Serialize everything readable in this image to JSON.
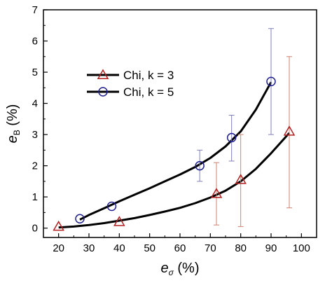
{
  "chart_data": {
    "type": "scatter",
    "xlim": [
      15,
      105
    ],
    "ylim": [
      -0.3,
      7
    ],
    "x_ticks": [
      20,
      30,
      40,
      50,
      60,
      70,
      80,
      90,
      100
    ],
    "y_ticks": [
      0,
      1,
      2,
      3,
      4,
      5,
      6,
      7
    ],
    "xlabel": {
      "main": "e",
      "sub": "σ",
      "rest": " (%)"
    },
    "ylabel": {
      "main": "e",
      "sub": "B",
      "rest": " (%)"
    },
    "legend_position": "upper-left",
    "grid": false,
    "series": [
      {
        "name": "Chi, k = 3",
        "marker": "triangle",
        "marker_color": "#b22222",
        "errorbar_color": "#d08070",
        "line_color": "#000000",
        "points": [
          {
            "x": 20,
            "y": 0.05,
            "err_low": 0.0,
            "err_high": 0.0
          },
          {
            "x": 40,
            "y": 0.2,
            "err_low": 0.0,
            "err_high": 0.0
          },
          {
            "x": 72,
            "y": 1.1,
            "err_low": 1.0,
            "err_high": 1.0
          },
          {
            "x": 80,
            "y": 1.55,
            "err_low": 1.5,
            "err_high": 1.45
          },
          {
            "x": 96,
            "y": 3.1,
            "err_low": 2.45,
            "err_high": 2.4
          }
        ],
        "fit": [
          [
            20,
            0.02
          ],
          [
            25,
            0.05
          ],
          [
            30,
            0.1
          ],
          [
            35,
            0.16
          ],
          [
            40,
            0.24
          ],
          [
            45,
            0.32
          ],
          [
            50,
            0.42
          ],
          [
            55,
            0.53
          ],
          [
            60,
            0.65
          ],
          [
            65,
            0.8
          ],
          [
            70,
            0.98
          ],
          [
            75,
            1.2
          ],
          [
            80,
            1.5
          ],
          [
            85,
            1.9
          ],
          [
            90,
            2.4
          ],
          [
            96,
            3.05
          ]
        ]
      },
      {
        "name": "Chi, k = 5",
        "marker": "circle",
        "marker_color": "#1f1f8f",
        "errorbar_color": "#8080b8",
        "line_color": "#000000",
        "points": [
          {
            "x": 27,
            "y": 0.3,
            "err_low": 0.0,
            "err_high": 0.0
          },
          {
            "x": 37.5,
            "y": 0.7,
            "err_low": 0.0,
            "err_high": 0.0
          },
          {
            "x": 66.5,
            "y": 2.0,
            "err_low": 0.5,
            "err_high": 0.5
          },
          {
            "x": 77,
            "y": 2.9,
            "err_low": 0.75,
            "err_high": 0.72
          },
          {
            "x": 90,
            "y": 4.7,
            "err_low": 1.7,
            "err_high": 1.7
          }
        ],
        "fit": [
          [
            27,
            0.27
          ],
          [
            30,
            0.42
          ],
          [
            35,
            0.64
          ],
          [
            40,
            0.86
          ],
          [
            45,
            1.07
          ],
          [
            50,
            1.28
          ],
          [
            55,
            1.5
          ],
          [
            60,
            1.72
          ],
          [
            65,
            1.96
          ],
          [
            70,
            2.25
          ],
          [
            75,
            2.62
          ],
          [
            80,
            3.1
          ],
          [
            85,
            3.8
          ],
          [
            90,
            4.68
          ]
        ]
      }
    ]
  }
}
